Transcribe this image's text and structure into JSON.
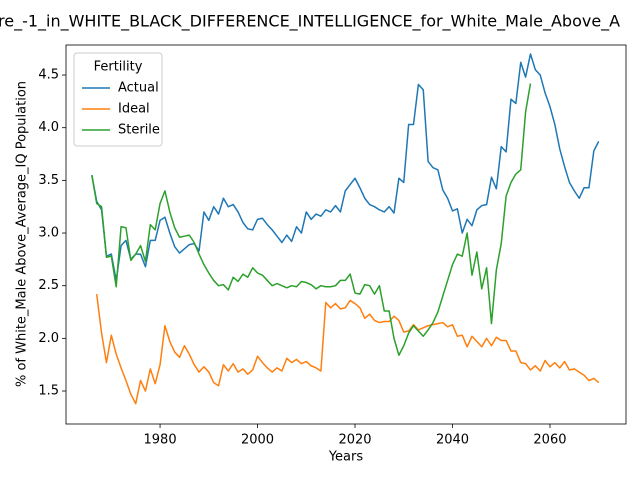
{
  "chart_data": {
    "type": "line",
    "title": "re_-1_in_WHITE_BLACK_DIFFERENCE_INTELLIGENCE_for_White_Male_Above_A",
    "x_label": "Years",
    "y_label": "% of White_Male Above_Average_IQ Population",
    "legend_title": "Fertility",
    "legend": "upper left",
    "grid": false,
    "x": [
      1966,
      1967,
      1968,
      1969,
      1970,
      1971,
      1972,
      1973,
      1974,
      1975,
      1976,
      1977,
      1978,
      1979,
      1980,
      1981,
      1982,
      1983,
      1984,
      1985,
      1986,
      1987,
      1988,
      1989,
      1990,
      1991,
      1992,
      1993,
      1994,
      1995,
      1996,
      1997,
      1998,
      1999,
      2000,
      2001,
      2002,
      2003,
      2004,
      2005,
      2006,
      2007,
      2008,
      2009,
      2010,
      2011,
      2012,
      2013,
      2014,
      2015,
      2016,
      2017,
      2018,
      2019,
      2020,
      2021,
      2022,
      2023,
      2024,
      2025,
      2026,
      2027,
      2028,
      2029,
      2030,
      2031,
      2032,
      2033,
      2034,
      2035,
      2036,
      2037,
      2038,
      2039,
      2040,
      2041,
      2042,
      2043,
      2044,
      2045,
      2046,
      2047,
      2048,
      2049,
      2050,
      2051,
      2052,
      2053,
      2054,
      2055,
      2056,
      2057,
      2058,
      2059,
      2060,
      2061,
      2062,
      2063,
      2064,
      2065,
      2066,
      2067,
      2068,
      2069,
      2070
    ],
    "series": [
      {
        "name": "Actual",
        "color": "#1f77b4",
        "values": [
          3.55,
          3.3,
          3.22,
          2.78,
          2.8,
          2.55,
          2.88,
          2.93,
          2.75,
          2.8,
          2.8,
          2.68,
          2.93,
          2.93,
          3.12,
          3.15,
          3.0,
          2.87,
          2.81,
          2.85,
          2.89,
          2.9,
          2.83,
          3.2,
          3.12,
          3.25,
          3.18,
          3.33,
          3.25,
          3.27,
          3.2,
          3.1,
          3.04,
          3.03,
          3.13,
          3.14,
          3.08,
          3.03,
          2.97,
          2.91,
          2.98,
          2.92,
          3.06,
          3.0,
          3.2,
          3.13,
          3.18,
          3.16,
          3.22,
          3.2,
          3.26,
          3.2,
          3.4,
          3.46,
          3.52,
          3.43,
          3.33,
          3.27,
          3.25,
          3.22,
          3.2,
          3.25,
          3.19,
          3.52,
          3.48,
          4.03,
          4.03,
          4.41,
          4.36,
          3.68,
          3.62,
          3.6,
          3.41,
          3.33,
          3.21,
          3.23,
          3.0,
          3.13,
          3.07,
          3.22,
          3.26,
          3.27,
          3.53,
          3.42,
          3.82,
          3.77,
          4.27,
          4.23,
          4.62,
          4.48,
          4.7,
          4.55,
          4.5,
          4.33,
          4.2,
          4.03,
          3.8,
          3.63,
          3.48,
          3.4,
          3.33,
          3.43,
          3.43,
          3.78,
          3.87
        ]
      },
      {
        "name": "Ideal",
        "color": "#ff7f0e",
        "values": [
          null,
          2.42,
          2.05,
          1.77,
          2.03,
          1.85,
          1.72,
          1.6,
          1.47,
          1.38,
          1.6,
          1.5,
          1.71,
          1.57,
          1.75,
          2.12,
          1.97,
          1.87,
          1.82,
          1.93,
          1.85,
          1.75,
          1.68,
          1.73,
          1.68,
          1.58,
          1.55,
          1.75,
          1.69,
          1.76,
          1.68,
          1.71,
          1.66,
          1.7,
          1.83,
          1.77,
          1.72,
          1.68,
          1.72,
          1.69,
          1.81,
          1.77,
          1.8,
          1.76,
          1.78,
          1.74,
          1.72,
          1.69,
          2.34,
          2.29,
          2.33,
          2.28,
          2.29,
          2.36,
          2.33,
          2.29,
          2.19,
          2.23,
          2.17,
          2.15,
          2.16,
          2.16,
          2.21,
          2.17,
          2.06,
          2.07,
          2.13,
          2.08,
          2.1,
          2.12,
          2.13,
          2.14,
          2.15,
          2.11,
          2.13,
          2.02,
          2.03,
          1.92,
          2.02,
          1.97,
          1.92,
          2.0,
          1.93,
          2.01,
          1.98,
          1.98,
          1.88,
          1.88,
          1.77,
          1.76,
          1.7,
          1.74,
          1.69,
          1.79,
          1.73,
          1.77,
          1.72,
          1.78,
          1.7,
          1.71,
          1.68,
          1.65,
          1.6,
          1.62,
          1.58
        ]
      },
      {
        "name": "Sterile",
        "color": "#2ca02c",
        "values": [
          3.55,
          3.28,
          3.25,
          2.77,
          2.78,
          2.49,
          3.06,
          3.05,
          2.74,
          2.8,
          2.88,
          2.73,
          3.08,
          3.03,
          3.28,
          3.4,
          3.2,
          3.05,
          2.96,
          2.97,
          2.98,
          2.91,
          2.8,
          2.7,
          2.62,
          2.55,
          2.5,
          2.51,
          2.46,
          2.58,
          2.54,
          2.61,
          2.58,
          2.67,
          2.62,
          2.6,
          2.55,
          2.5,
          2.52,
          2.5,
          2.48,
          2.5,
          2.49,
          2.54,
          2.53,
          2.51,
          2.47,
          2.5,
          2.49,
          2.49,
          2.5,
          2.55,
          2.55,
          2.61,
          2.43,
          2.42,
          2.51,
          2.5,
          2.42,
          2.5,
          2.26,
          2.26,
          2.0,
          1.84,
          1.93,
          2.05,
          2.12,
          2.07,
          2.02,
          2.08,
          2.15,
          2.25,
          2.4,
          2.55,
          2.7,
          2.8,
          2.78,
          3.0,
          2.6,
          2.82,
          2.47,
          2.67,
          2.14,
          2.65,
          2.9,
          3.35,
          3.48,
          3.56,
          3.6,
          4.15,
          4.42,
          null,
          null,
          null,
          null,
          null,
          null,
          null,
          null,
          null,
          null,
          null,
          null,
          null,
          null
        ]
      }
    ],
    "xlim": [
      1960.7,
      2075.6
    ],
    "xticks": [
      1980,
      2000,
      2020,
      2040,
      2060
    ],
    "ylim": [
      1.187,
      4.785
    ],
    "yticks": [
      {
        "value": 1.5,
        "label": "1.5"
      },
      {
        "value": 2.0,
        "label": "2.0"
      },
      {
        "value": 2.5,
        "label": "2.5"
      },
      {
        "value": 3.0,
        "label": "3.0"
      },
      {
        "value": 3.5,
        "label": "3.5"
      },
      {
        "value": 4.0,
        "label": "4.0"
      },
      {
        "value": 4.5,
        "label": "4.5"
      }
    ]
  }
}
